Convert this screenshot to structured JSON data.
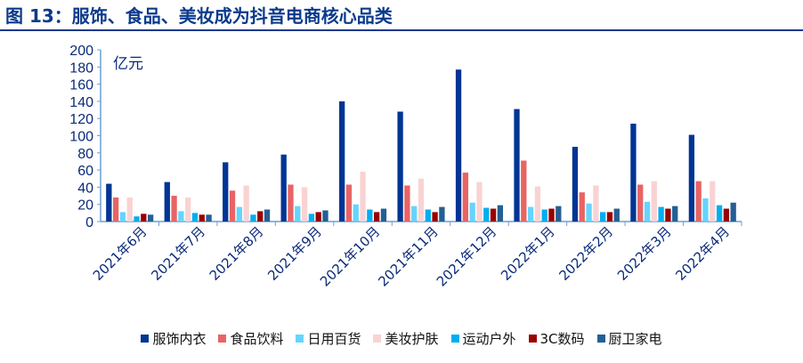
{
  "title": "图 13：服饰、食品、美妆成为抖音电商核心品类",
  "chart_data": {
    "type": "bar",
    "title": "图 13：服饰、食品、美妆成为抖音电商核心品类",
    "ylabel": "亿元",
    "ylim": [
      0,
      200
    ],
    "yticks": [
      0,
      20,
      40,
      60,
      80,
      100,
      120,
      140,
      160,
      180,
      200
    ],
    "grid": false,
    "legend_position": "bottom",
    "categories": [
      "2021年6月",
      "2021年7月",
      "2021年8月",
      "2021年9月",
      "2021年10月",
      "2021年11月",
      "2021年12月",
      "2022年1月",
      "2022年2月",
      "2022年3月",
      "2022年4月"
    ],
    "series": [
      {
        "name": "服饰内衣",
        "color": "#003594",
        "values": [
          44,
          46,
          69,
          78,
          140,
          128,
          177,
          131,
          87,
          114,
          101
        ]
      },
      {
        "name": "食品饮料",
        "color": "#e86464",
        "values": [
          28,
          30,
          36,
          43,
          43,
          42,
          57,
          71,
          34,
          43,
          47
        ]
      },
      {
        "name": "日用百货",
        "color": "#66d4ff",
        "values": [
          11,
          12,
          17,
          18,
          20,
          18,
          22,
          17,
          21,
          23,
          27
        ]
      },
      {
        "name": "美妆护肤",
        "color": "#f9d3d3",
        "values": [
          28,
          28,
          42,
          40,
          58,
          50,
          46,
          41,
          42,
          47,
          47
        ]
      },
      {
        "name": "运动户外",
        "color": "#00aeef",
        "values": [
          6,
          10,
          8,
          9,
          14,
          14,
          16,
          14,
          11,
          17,
          19
        ]
      },
      {
        "name": "3C数码",
        "color": "#990000",
        "values": [
          9,
          8,
          12,
          11,
          11,
          11,
          15,
          15,
          11,
          15,
          15
        ]
      },
      {
        "name": "厨卫家电",
        "color": "#245f94",
        "values": [
          8,
          8,
          14,
          13,
          15,
          17,
          19,
          18,
          15,
          18,
          22
        ]
      }
    ]
  }
}
